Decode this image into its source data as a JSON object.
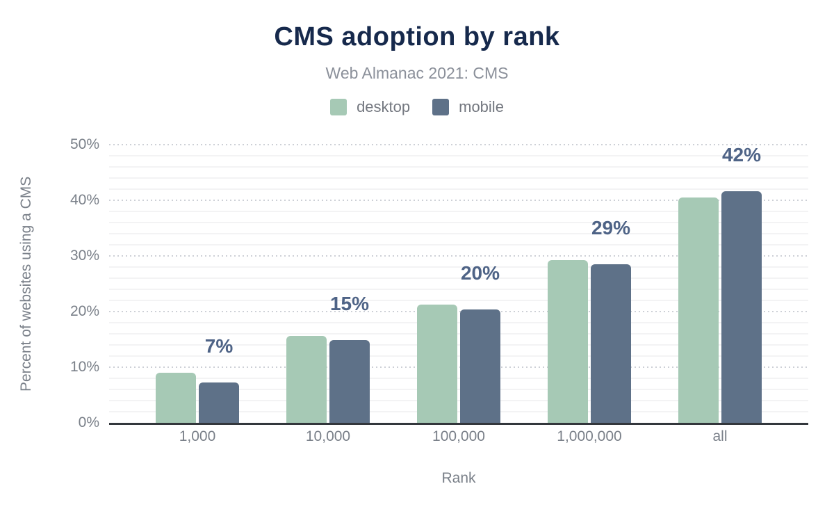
{
  "chart_data": {
    "type": "bar",
    "title": "CMS adoption by rank",
    "subtitle": "Web Almanac 2021: CMS",
    "xlabel": "Rank",
    "ylabel": "Percent of websites using a CMS",
    "categories": [
      "1,000",
      "10,000",
      "100,000",
      "1,000,000",
      "all"
    ],
    "series": [
      {
        "name": "desktop",
        "color": "#a6c9b5",
        "values": [
          9.0,
          15.6,
          21.2,
          29.2,
          40.5
        ]
      },
      {
        "name": "mobile",
        "color": "#5e7188",
        "values": [
          7.3,
          14.9,
          20.4,
          28.5,
          41.6
        ]
      }
    ],
    "annotations": [
      "7%",
      "15%",
      "20%",
      "29%",
      "42%"
    ],
    "annotation_series": "mobile",
    "ylim": [
      0,
      50
    ],
    "yticks": [
      "0%",
      "10%",
      "20%",
      "30%",
      "40%",
      "50%"
    ],
    "grid": {
      "major_step": 10,
      "minor_step": 2,
      "major_style": "dotted",
      "minor_style": "solid"
    },
    "legend_position": "top",
    "colors": {
      "title": "#16294c",
      "subtitle": "#8b909a",
      "axis_text": "#7a8089",
      "annotation": "#4e6386",
      "axis_line": "#33373c"
    }
  }
}
